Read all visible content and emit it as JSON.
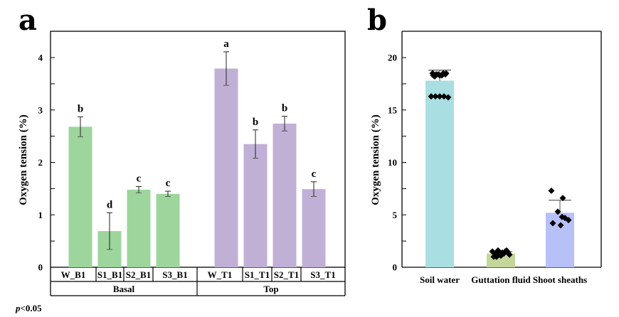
{
  "chart_data": [
    {
      "panel": "a",
      "type": "bar",
      "title": "",
      "xlabel": "",
      "ylabel": "Oxygen tension (%)",
      "ylim": [
        0,
        4.4
      ],
      "yticks": [
        0,
        1,
        2,
        3,
        4
      ],
      "grid": false,
      "categories": [
        "W_B1",
        "S1_B1",
        "S2_B1",
        "S3_B1",
        "W_T1",
        "S1_T1",
        "S2_T1",
        "S3_T1"
      ],
      "groups": [
        {
          "name": "Basal",
          "categories": [
            "W_B1",
            "S1_B1",
            "S2_B1",
            "S3_B1"
          ],
          "color": "#9dd59c"
        },
        {
          "name": "Top",
          "categories": [
            "W_T1",
            "S1_T1",
            "S2_T1",
            "S3_T1"
          ],
          "color": "#c0b0d6"
        }
      ],
      "values": [
        2.68,
        0.69,
        1.48,
        1.4,
        3.79,
        2.35,
        2.74,
        1.49
      ],
      "errors": [
        0.19,
        0.35,
        0.06,
        0.05,
        0.32,
        0.27,
        0.14,
        0.14
      ],
      "significance": [
        "b",
        "d",
        "c",
        "c",
        "a",
        "b",
        "b",
        "c"
      ],
      "footnote": "p<0.05",
      "footnote_italic_part": "p",
      "footnote_rest": "<0.05"
    },
    {
      "panel": "b",
      "type": "bar",
      "title": "",
      "xlabel": "",
      "ylabel": "Oxygen tension (%)",
      "ylim": [
        0,
        22
      ],
      "yticks": [
        0,
        5,
        10,
        15,
        20
      ],
      "grid": false,
      "categories": [
        "Soil water",
        "Guttation fluid",
        "Shoot sheaths"
      ],
      "colors": [
        "#a9dee2",
        "#c5d69b",
        "#b8c0f8"
      ],
      "values": [
        17.8,
        1.3,
        5.2
      ],
      "errors": [
        1.0,
        0.2,
        1.2
      ],
      "points": [
        [
          18.5,
          18.4,
          18.3,
          18.5,
          18.4,
          18.2,
          18.3,
          18.5,
          18.4,
          18.3,
          16.3,
          16.3,
          16.3,
          16.3,
          16.2
        ],
        [
          1.5,
          1.3,
          1.6,
          1.2,
          1.4,
          1.0,
          1.5,
          1.1,
          1.3,
          1.6,
          1.4,
          1.2,
          1.0
        ],
        [
          7.3,
          6.6,
          5.3,
          4.8,
          4.5,
          4.2,
          4.0,
          4.7
        ]
      ]
    }
  ],
  "panel_labels": {
    "a": "a",
    "b": "b"
  }
}
